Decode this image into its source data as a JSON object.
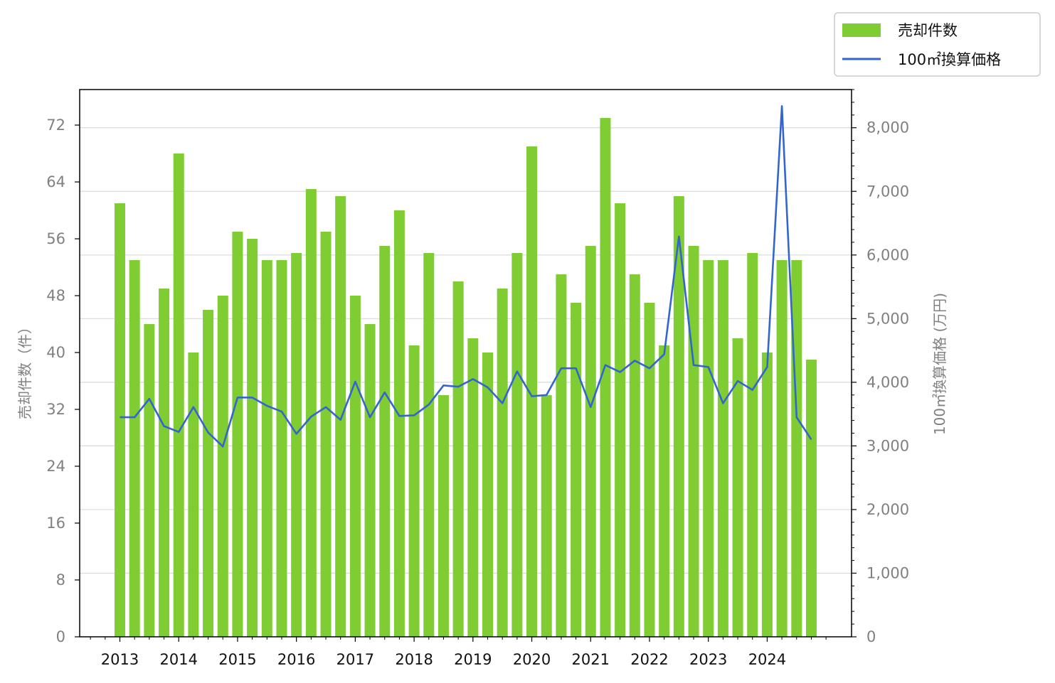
{
  "chart_data": {
    "type": "bar+line",
    "x_tick_labels": [
      "2013",
      "2014",
      "2015",
      "2016",
      "2017",
      "2018",
      "2019",
      "2020",
      "2021",
      "2022",
      "2023",
      "2024"
    ],
    "quarters": [
      "2013Q1",
      "2013Q2",
      "2013Q3",
      "2013Q4",
      "2014Q1",
      "2014Q2",
      "2014Q3",
      "2014Q4",
      "2015Q1",
      "2015Q2",
      "2015Q3",
      "2015Q4",
      "2016Q1",
      "2016Q2",
      "2016Q3",
      "2016Q4",
      "2017Q1",
      "2017Q2",
      "2017Q3",
      "2017Q4",
      "2018Q1",
      "2018Q2",
      "2018Q3",
      "2018Q4",
      "2019Q1",
      "2019Q2",
      "2019Q3",
      "2019Q4",
      "2020Q1",
      "2020Q2",
      "2020Q3",
      "2020Q4",
      "2021Q1",
      "2021Q2",
      "2021Q3",
      "2021Q4",
      "2022Q1",
      "2022Q2",
      "2022Q3",
      "2022Q4",
      "2023Q1",
      "2023Q2",
      "2023Q3",
      "2023Q4",
      "2024Q1",
      "2024Q2",
      "2024Q3",
      "2024Q4"
    ],
    "series": [
      {
        "name": "売却件数",
        "type": "bar",
        "axis": "left",
        "color": "#7fcc33",
        "values": [
          61,
          53,
          44,
          49,
          68,
          40,
          46,
          48,
          57,
          56,
          53,
          53,
          54,
          63,
          57,
          62,
          48,
          44,
          55,
          60,
          41,
          54,
          34,
          50,
          42,
          40,
          49,
          54,
          69,
          34,
          51,
          47,
          55,
          73,
          61,
          51,
          47,
          41,
          62,
          55,
          53,
          53,
          42,
          54,
          40,
          53,
          53,
          39
        ]
      },
      {
        "name": "100㎡換算価格",
        "type": "line",
        "axis": "right",
        "color": "#3366cc",
        "values": [
          3450,
          3450,
          3740,
          3310,
          3220,
          3610,
          3210,
          2990,
          3760,
          3760,
          3630,
          3540,
          3190,
          3460,
          3610,
          3410,
          4010,
          3450,
          3840,
          3470,
          3480,
          3650,
          3950,
          3930,
          4050,
          3920,
          3670,
          4170,
          3780,
          3800,
          4220,
          4220,
          3610,
          4270,
          4160,
          4340,
          4220,
          4440,
          6290,
          4270,
          4240,
          3670,
          4020,
          3880,
          4240,
          8340,
          3450,
          3100
        ]
      }
    ],
    "y_left": {
      "label": "売却件数（件）",
      "range": [
        0,
        77
      ],
      "ticks": [
        "0",
        "8",
        "16",
        "24",
        "32",
        "40",
        "48",
        "56",
        "64",
        "72"
      ]
    },
    "y_right": {
      "label": "100㎡換算価格 (万円)",
      "range": [
        0,
        8600
      ],
      "ticks": [
        "0",
        "1,000",
        "2,000",
        "3,000",
        "4,000",
        "5,000",
        "6,000",
        "7,000",
        "8,000"
      ]
    },
    "grid": "horizontal, right axis",
    "legend": "top-right, outside plot"
  }
}
